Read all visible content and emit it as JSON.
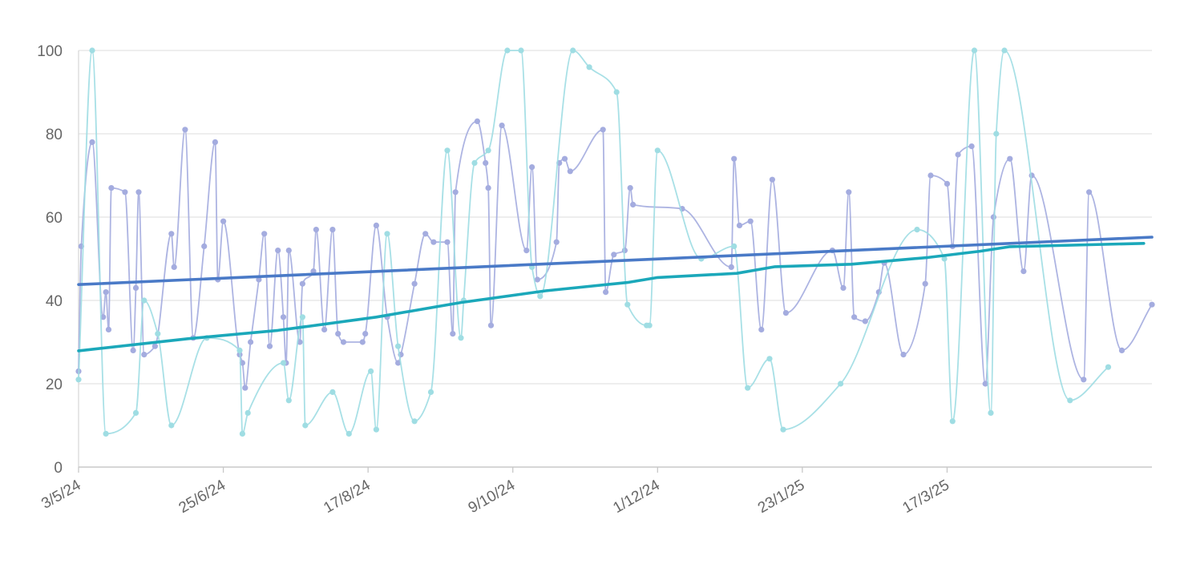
{
  "chart_data": {
    "type": "line",
    "title": "",
    "xlabel": "",
    "ylabel": "",
    "ylim": [
      0,
      100
    ],
    "yticks": [
      "0",
      "20",
      "40",
      "60",
      "80",
      "100"
    ],
    "xlim": [
      "2024-05-03",
      "2025-05-31"
    ],
    "xtick_labels": [
      {
        "date": "2024-05-03",
        "label": "3/5/24"
      },
      {
        "date": "2024-06-25",
        "label": "25/6/24"
      },
      {
        "date": "2024-08-17",
        "label": "17/8/24"
      },
      {
        "date": "2024-10-09",
        "label": "9/10/24"
      },
      {
        "date": "2024-12-01",
        "label": "1/12/24"
      },
      {
        "date": "2025-01-23",
        "label": "23/1/25"
      },
      {
        "date": "2025-03-17",
        "label": "17/3/25"
      }
    ],
    "grid": true,
    "legend": "none",
    "series": [
      {
        "color": "#a4acdf",
        "style": "smooth-line-with-points",
        "points": [
          [
            "2024-05-03",
            23
          ],
          [
            "2024-05-04",
            53
          ],
          [
            "2024-05-08",
            78
          ],
          [
            "2024-05-12",
            36
          ],
          [
            "2024-05-13",
            42
          ],
          [
            "2024-05-14",
            33
          ],
          [
            "2024-05-15",
            67
          ],
          [
            "2024-05-20",
            66
          ],
          [
            "2024-05-23",
            28
          ],
          [
            "2024-05-24",
            43
          ],
          [
            "2024-05-25",
            66
          ],
          [
            "2024-05-27",
            27
          ],
          [
            "2024-05-31",
            29
          ],
          [
            "2024-06-06",
            56
          ],
          [
            "2024-06-07",
            48
          ],
          [
            "2024-06-11",
            81
          ],
          [
            "2024-06-14",
            31
          ],
          [
            "2024-06-18",
            53
          ],
          [
            "2024-06-22",
            78
          ],
          [
            "2024-06-23",
            45
          ],
          [
            "2024-06-25",
            59
          ],
          [
            "2024-07-01",
            27
          ],
          [
            "2024-07-02",
            25
          ],
          [
            "2024-07-03",
            19
          ],
          [
            "2024-07-05",
            30
          ],
          [
            "2024-07-08",
            45
          ],
          [
            "2024-07-10",
            56
          ],
          [
            "2024-07-12",
            29
          ],
          [
            "2024-07-15",
            52
          ],
          [
            "2024-07-17",
            36
          ],
          [
            "2024-07-18",
            25
          ],
          [
            "2024-07-19",
            52
          ],
          [
            "2024-07-23",
            30
          ],
          [
            "2024-07-24",
            44
          ],
          [
            "2024-07-28",
            47
          ],
          [
            "2024-07-29",
            57
          ],
          [
            "2024-08-01",
            33
          ],
          [
            "2024-08-04",
            57
          ],
          [
            "2024-08-06",
            32
          ],
          [
            "2024-08-08",
            30
          ],
          [
            "2024-08-15",
            30
          ],
          [
            "2024-08-16",
            32
          ],
          [
            "2024-08-20",
            58
          ],
          [
            "2024-08-24",
            36
          ],
          [
            "2024-08-28",
            25
          ],
          [
            "2024-08-29",
            27
          ],
          [
            "2024-09-03",
            44
          ],
          [
            "2024-09-07",
            56
          ],
          [
            "2024-09-10",
            54
          ],
          [
            "2024-09-15",
            54
          ],
          [
            "2024-09-17",
            32
          ],
          [
            "2024-09-18",
            66
          ],
          [
            "2024-09-26",
            83
          ],
          [
            "2024-09-29",
            73
          ],
          [
            "2024-09-30",
            67
          ],
          [
            "2024-10-01",
            34
          ],
          [
            "2024-10-05",
            82
          ],
          [
            "2024-10-14",
            52
          ],
          [
            "2024-10-16",
            72
          ],
          [
            "2024-10-18",
            45
          ],
          [
            "2024-10-25",
            54
          ],
          [
            "2024-10-26",
            73
          ],
          [
            "2024-10-28",
            74
          ],
          [
            "2024-10-30",
            71
          ],
          [
            "2024-11-11",
            81
          ],
          [
            "2024-11-12",
            42
          ],
          [
            "2024-11-15",
            51
          ],
          [
            "2024-11-19",
            52
          ],
          [
            "2024-11-21",
            67
          ],
          [
            "2024-11-22",
            63
          ],
          [
            "2024-12-10",
            62
          ],
          [
            "2024-12-28",
            48
          ],
          [
            "2024-12-29",
            74
          ],
          [
            "2024-12-31",
            58
          ],
          [
            "2025-01-04",
            59
          ],
          [
            "2025-01-08",
            33
          ],
          [
            "2025-01-12",
            69
          ],
          [
            "2025-01-17",
            37
          ],
          [
            "2025-02-03",
            52
          ],
          [
            "2025-02-07",
            43
          ],
          [
            "2025-02-09",
            66
          ],
          [
            "2025-02-11",
            36
          ],
          [
            "2025-02-15",
            35
          ],
          [
            "2025-02-20",
            42
          ],
          [
            "2025-02-22",
            49
          ],
          [
            "2025-03-01",
            27
          ],
          [
            "2025-03-09",
            44
          ],
          [
            "2025-03-11",
            70
          ],
          [
            "2025-03-17",
            68
          ],
          [
            "2025-03-19",
            53
          ],
          [
            "2025-03-21",
            75
          ],
          [
            "2025-03-26",
            77
          ],
          [
            "2025-03-31",
            20
          ],
          [
            "2025-04-03",
            60
          ],
          [
            "2025-04-09",
            74
          ],
          [
            "2025-04-14",
            47
          ],
          [
            "2025-04-17",
            70
          ],
          [
            "2025-05-06",
            21
          ],
          [
            "2025-05-08",
            66
          ],
          [
            "2025-05-20",
            28
          ],
          [
            "2025-05-31",
            39
          ]
        ]
      },
      {
        "color": "#9fdde3",
        "style": "smooth-line-with-points",
        "points": [
          [
            "2024-05-03",
            21
          ],
          [
            "2024-05-08",
            100
          ],
          [
            "2024-05-13",
            8
          ],
          [
            "2024-05-24",
            13
          ],
          [
            "2024-05-27",
            40
          ],
          [
            "2024-06-01",
            32
          ],
          [
            "2024-06-06",
            10
          ],
          [
            "2024-06-19",
            31
          ],
          [
            "2024-07-01",
            28
          ],
          [
            "2024-07-02",
            8
          ],
          [
            "2024-07-04",
            13
          ],
          [
            "2024-07-17",
            25
          ],
          [
            "2024-07-19",
            16
          ],
          [
            "2024-07-24",
            36
          ],
          [
            "2024-07-25",
            10
          ],
          [
            "2024-08-04",
            18
          ],
          [
            "2024-08-10",
            8
          ],
          [
            "2024-08-18",
            23
          ],
          [
            "2024-08-20",
            9
          ],
          [
            "2024-08-24",
            56
          ],
          [
            "2024-08-28",
            29
          ],
          [
            "2024-09-03",
            11
          ],
          [
            "2024-09-09",
            18
          ],
          [
            "2024-09-15",
            76
          ],
          [
            "2024-09-20",
            31
          ],
          [
            "2024-09-21",
            40
          ],
          [
            "2024-09-25",
            73
          ],
          [
            "2024-09-30",
            76
          ],
          [
            "2024-10-07",
            100
          ],
          [
            "2024-10-12",
            100
          ],
          [
            "2024-10-16",
            48
          ],
          [
            "2024-10-19",
            41
          ],
          [
            "2024-10-31",
            100
          ],
          [
            "2024-11-06",
            96
          ],
          [
            "2024-11-16",
            90
          ],
          [
            "2024-11-20",
            39
          ],
          [
            "2024-11-27",
            34
          ],
          [
            "2024-11-28",
            34
          ],
          [
            "2024-12-01",
            76
          ],
          [
            "2024-12-17",
            50
          ],
          [
            "2024-12-29",
            53
          ],
          [
            "2025-01-03",
            19
          ],
          [
            "2025-01-11",
            26
          ],
          [
            "2025-01-16",
            9
          ],
          [
            "2025-02-06",
            20
          ],
          [
            "2025-03-06",
            57
          ],
          [
            "2025-03-16",
            50
          ],
          [
            "2025-03-19",
            11
          ],
          [
            "2025-03-27",
            100
          ],
          [
            "2025-04-02",
            13
          ],
          [
            "2025-04-04",
            80
          ],
          [
            "2025-04-07",
            100
          ],
          [
            "2025-05-01",
            16
          ],
          [
            "2025-05-15",
            24
          ]
        ]
      },
      {
        "color": "#4a7ac7",
        "style": "trendline",
        "points": [
          [
            "2024-05-03",
            43.8
          ],
          [
            "2025-05-31",
            55.2
          ]
        ]
      },
      {
        "color": "#1ba8ba",
        "style": "trendline",
        "points": [
          [
            "2024-05-03",
            27.9
          ],
          [
            "2024-06-12",
            30.8
          ],
          [
            "2024-07-15",
            32.8
          ],
          [
            "2024-08-20",
            36.0
          ],
          [
            "2024-09-20",
            39.5
          ],
          [
            "2024-10-21",
            42.3
          ],
          [
            "2024-11-20",
            44.3
          ],
          [
            "2024-12-01",
            45.5
          ],
          [
            "2024-12-30",
            46.5
          ],
          [
            "2025-01-13",
            48.1
          ],
          [
            "2025-02-10",
            48.7
          ],
          [
            "2025-03-10",
            50.3
          ],
          [
            "2025-03-29",
            51.8
          ],
          [
            "2025-04-09",
            52.9
          ],
          [
            "2025-05-28",
            53.7
          ]
        ]
      }
    ]
  }
}
